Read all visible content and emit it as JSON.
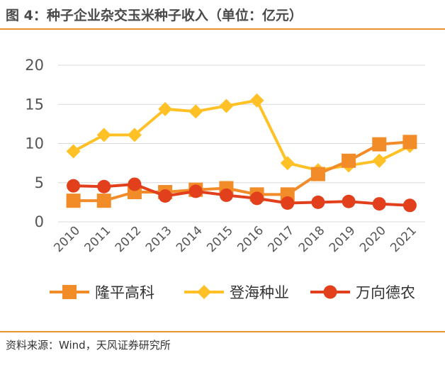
{
  "title": "图 4：种子企业杂交玉米种子收入（单位：亿元）",
  "source": "资料来源：Wind，天风证券研究所",
  "chart_data": {
    "type": "line",
    "x": [
      "2010",
      "2011",
      "2012",
      "2013",
      "2014",
      "2015",
      "2016",
      "2017",
      "2018",
      "2019",
      "2020",
      "2021"
    ],
    "yticks": [
      "0",
      "5",
      "10",
      "15",
      "20"
    ],
    "ylim": [
      0,
      20
    ],
    "grid": true,
    "legend_position": "bottom",
    "series": [
      {
        "name": "隆平高科",
        "color": "#F28C28",
        "marker": "square",
        "values": [
          2.7,
          2.7,
          3.8,
          3.8,
          4.1,
          4.3,
          3.5,
          3.5,
          6.1,
          7.8,
          9.9,
          10.2
        ]
      },
      {
        "name": "登海种业",
        "color": "#FFC125",
        "marker": "diamond",
        "values": [
          9.0,
          11.1,
          11.1,
          14.4,
          14.1,
          14.8,
          15.5,
          7.5,
          6.6,
          7.2,
          7.8,
          9.7
        ]
      },
      {
        "name": "万向德农",
        "color": "#E2401C",
        "marker": "circle",
        "values": [
          4.6,
          4.5,
          4.8,
          3.3,
          3.9,
          3.4,
          3.0,
          2.4,
          2.5,
          2.6,
          2.3,
          2.1
        ]
      }
    ]
  }
}
